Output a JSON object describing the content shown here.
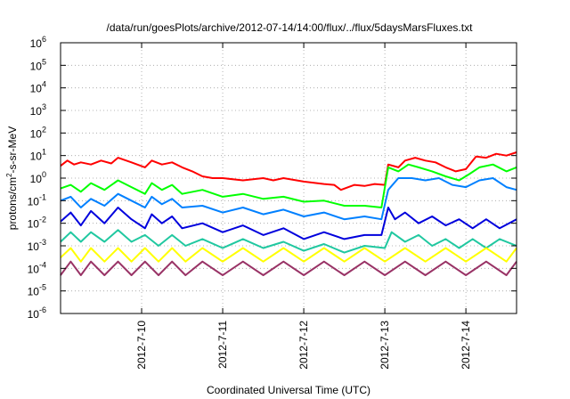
{
  "chart_data": {
    "type": "line",
    "title": "/data/run/goesPlots/archive/2012-07-14/14:00/flux/../flux/5daysMarsFluxes.txt",
    "xlabel": "Coordinated Universal Time (UTC)",
    "ylabel": {
      "prefix": "protons/cm",
      "sup": "2",
      "suffix": "-s-sr-MeV"
    },
    "yscale": "log",
    "ylim": [
      1e-06,
      1000000.0
    ],
    "xlim": [
      "2012-07-09T00:00",
      "2012-07-14T15:00"
    ],
    "grid": true,
    "legend": "none",
    "x_ticks": [
      {
        "label": "2012-7-10",
        "t": "2012-07-10T00:00"
      },
      {
        "label": "2012-7-11",
        "t": "2012-07-11T00:00"
      },
      {
        "label": "2012-7-12",
        "t": "2012-07-12T00:00"
      },
      {
        "label": "2012-7-13",
        "t": "2012-07-13T00:00"
      },
      {
        "label": "2012-7-14",
        "t": "2012-07-14T00:00"
      }
    ],
    "y_ticks": [
      {
        "base": "10",
        "exp": "-6",
        "v": -6
      },
      {
        "base": "10",
        "exp": "-5",
        "v": -5
      },
      {
        "base": "10",
        "exp": "-4",
        "v": -4
      },
      {
        "base": "10",
        "exp": "-3",
        "v": -3
      },
      {
        "base": "10",
        "exp": "-2",
        "v": -2
      },
      {
        "base": "10",
        "exp": "-1",
        "v": -1
      },
      {
        "base": "10",
        "exp": "0",
        "v": 0
      },
      {
        "base": "10",
        "exp": "1",
        "v": 1
      },
      {
        "base": "10",
        "exp": "2",
        "v": 2
      },
      {
        "base": "10",
        "exp": "3",
        "v": 3
      },
      {
        "base": "10",
        "exp": "4",
        "v": 4
      },
      {
        "base": "10",
        "exp": "5",
        "v": 5
      },
      {
        "base": "10",
        "exp": "6",
        "v": 6
      }
    ],
    "series": [
      {
        "color": "#ff0000",
        "values": [
          [
            "2012-07-09T00:00",
            3.5
          ],
          [
            "2012-07-09T02:00",
            6
          ],
          [
            "2012-07-09T04:00",
            4
          ],
          [
            "2012-07-09T06:00",
            5
          ],
          [
            "2012-07-09T09:00",
            4
          ],
          [
            "2012-07-09T12:00",
            6
          ],
          [
            "2012-07-09T15:00",
            4.5
          ],
          [
            "2012-07-09T17:00",
            8
          ],
          [
            "2012-07-09T21:00",
            5
          ],
          [
            "2012-07-10T01:00",
            3
          ],
          [
            "2012-07-10T03:00",
            6
          ],
          [
            "2012-07-10T06:00",
            4
          ],
          [
            "2012-07-10T09:00",
            5
          ],
          [
            "2012-07-10T12:00",
            3
          ],
          [
            "2012-07-10T15:00",
            2
          ],
          [
            "2012-07-10T18:00",
            1.2
          ],
          [
            "2012-07-10T21:00",
            1.0
          ],
          [
            "2012-07-11T00:00",
            1.0
          ],
          [
            "2012-07-11T06:00",
            0.8
          ],
          [
            "2012-07-11T12:00",
            1.0
          ],
          [
            "2012-07-11T15:00",
            0.8
          ],
          [
            "2012-07-11T18:00",
            1.0
          ],
          [
            "2012-07-12T00:00",
            0.7
          ],
          [
            "2012-07-12T06:00",
            0.55
          ],
          [
            "2012-07-12T09:00",
            0.5
          ],
          [
            "2012-07-12T11:00",
            0.3
          ],
          [
            "2012-07-12T15:00",
            0.5
          ],
          [
            "2012-07-12T18:00",
            0.45
          ],
          [
            "2012-07-12T21:00",
            0.55
          ],
          [
            "2012-07-13T00:00",
            0.5
          ],
          [
            "2012-07-13T01:00",
            4
          ],
          [
            "2012-07-13T04:00",
            3
          ],
          [
            "2012-07-13T06:00",
            6
          ],
          [
            "2012-07-13T09:00",
            8
          ],
          [
            "2012-07-13T12:00",
            6
          ],
          [
            "2012-07-13T15:00",
            5
          ],
          [
            "2012-07-13T18:00",
            3
          ],
          [
            "2012-07-13T21:00",
            2
          ],
          [
            "2012-07-14T00:00",
            2.5
          ],
          [
            "2012-07-14T03:00",
            9
          ],
          [
            "2012-07-14T06:00",
            8
          ],
          [
            "2012-07-14T09:00",
            12
          ],
          [
            "2012-07-14T12:00",
            10
          ],
          [
            "2012-07-14T15:00",
            14
          ]
        ]
      },
      {
        "color": "#00ff00",
        "values": [
          [
            "2012-07-09T00:00",
            0.35
          ],
          [
            "2012-07-09T03:00",
            0.5
          ],
          [
            "2012-07-09T06:00",
            0.25
          ],
          [
            "2012-07-09T09:00",
            0.6
          ],
          [
            "2012-07-09T13:00",
            0.3
          ],
          [
            "2012-07-09T17:00",
            0.8
          ],
          [
            "2012-07-09T21:00",
            0.4
          ],
          [
            "2012-07-10T01:00",
            0.2
          ],
          [
            "2012-07-10T03:00",
            0.6
          ],
          [
            "2012-07-10T06:00",
            0.3
          ],
          [
            "2012-07-10T09:00",
            0.5
          ],
          [
            "2012-07-10T12:00",
            0.2
          ],
          [
            "2012-07-10T18:00",
            0.3
          ],
          [
            "2012-07-11T00:00",
            0.15
          ],
          [
            "2012-07-11T06:00",
            0.2
          ],
          [
            "2012-07-11T12:00",
            0.12
          ],
          [
            "2012-07-11T18:00",
            0.15
          ],
          [
            "2012-07-12T00:00",
            0.09
          ],
          [
            "2012-07-12T06:00",
            0.1
          ],
          [
            "2012-07-12T12:00",
            0.06
          ],
          [
            "2012-07-12T18:00",
            0.06
          ],
          [
            "2012-07-12T23:00",
            0.05
          ],
          [
            "2012-07-13T01:00",
            3
          ],
          [
            "2012-07-13T04:00",
            2
          ],
          [
            "2012-07-13T07:00",
            4
          ],
          [
            "2012-07-13T10:00",
            3
          ],
          [
            "2012-07-13T14:00",
            2
          ],
          [
            "2012-07-13T18:00",
            1.2
          ],
          [
            "2012-07-13T22:00",
            0.8
          ],
          [
            "2012-07-14T01:00",
            1.5
          ],
          [
            "2012-07-14T04:00",
            3
          ],
          [
            "2012-07-14T08:00",
            4
          ],
          [
            "2012-07-14T12:00",
            2
          ],
          [
            "2012-07-14T15:00",
            3
          ]
        ]
      },
      {
        "color": "#0080ff",
        "values": [
          [
            "2012-07-09T00:00",
            0.1
          ],
          [
            "2012-07-09T03:00",
            0.15
          ],
          [
            "2012-07-09T06:00",
            0.05
          ],
          [
            "2012-07-09T09:00",
            0.12
          ],
          [
            "2012-07-09T13:00",
            0.06
          ],
          [
            "2012-07-09T17:00",
            0.2
          ],
          [
            "2012-07-09T21:00",
            0.1
          ],
          [
            "2012-07-10T01:00",
            0.05
          ],
          [
            "2012-07-10T03:00",
            0.15
          ],
          [
            "2012-07-10T06:00",
            0.07
          ],
          [
            "2012-07-10T09:00",
            0.12
          ],
          [
            "2012-07-10T12:00",
            0.05
          ],
          [
            "2012-07-10T18:00",
            0.06
          ],
          [
            "2012-07-11T00:00",
            0.03
          ],
          [
            "2012-07-11T06:00",
            0.05
          ],
          [
            "2012-07-11T12:00",
            0.025
          ],
          [
            "2012-07-11T18:00",
            0.04
          ],
          [
            "2012-07-12T00:00",
            0.02
          ],
          [
            "2012-07-12T06:00",
            0.03
          ],
          [
            "2012-07-12T12:00",
            0.015
          ],
          [
            "2012-07-12T18:00",
            0.02
          ],
          [
            "2012-07-12T23:00",
            0.015
          ],
          [
            "2012-07-13T01:00",
            0.3
          ],
          [
            "2012-07-13T04:00",
            1.0
          ],
          [
            "2012-07-13T08:00",
            1.0
          ],
          [
            "2012-07-13T12:00",
            0.8
          ],
          [
            "2012-07-13T16:00",
            1.0
          ],
          [
            "2012-07-13T20:00",
            0.5
          ],
          [
            "2012-07-14T00:00",
            0.4
          ],
          [
            "2012-07-14T04:00",
            0.8
          ],
          [
            "2012-07-14T08:00",
            1.0
          ],
          [
            "2012-07-14T12:00",
            0.4
          ],
          [
            "2012-07-14T15:00",
            0.3
          ]
        ]
      },
      {
        "color": "#0000dd",
        "values": [
          [
            "2012-07-09T00:00",
            0.012
          ],
          [
            "2012-07-09T03:00",
            0.03
          ],
          [
            "2012-07-09T06:00",
            0.008
          ],
          [
            "2012-07-09T09:00",
            0.035
          ],
          [
            "2012-07-09T13:00",
            0.01
          ],
          [
            "2012-07-09T17:00",
            0.05
          ],
          [
            "2012-07-09T21:00",
            0.015
          ],
          [
            "2012-07-10T01:00",
            0.006
          ],
          [
            "2012-07-10T03:00",
            0.025
          ],
          [
            "2012-07-10T06:00",
            0.01
          ],
          [
            "2012-07-10T09:00",
            0.02
          ],
          [
            "2012-07-10T12:00",
            0.006
          ],
          [
            "2012-07-10T18:00",
            0.01
          ],
          [
            "2012-07-11T00:00",
            0.004
          ],
          [
            "2012-07-11T06:00",
            0.008
          ],
          [
            "2012-07-11T12:00",
            0.003
          ],
          [
            "2012-07-11T18:00",
            0.006
          ],
          [
            "2012-07-12T00:00",
            0.002
          ],
          [
            "2012-07-12T06:00",
            0.004
          ],
          [
            "2012-07-12T12:00",
            0.002
          ],
          [
            "2012-07-12T18:00",
            0.003
          ],
          [
            "2012-07-12T23:00",
            0.003
          ],
          [
            "2012-07-13T01:00",
            0.05
          ],
          [
            "2012-07-13T03:00",
            0.015
          ],
          [
            "2012-07-13T06:00",
            0.03
          ],
          [
            "2012-07-13T10:00",
            0.01
          ],
          [
            "2012-07-13T14:00",
            0.02
          ],
          [
            "2012-07-13T18:00",
            0.008
          ],
          [
            "2012-07-13T22:00",
            0.015
          ],
          [
            "2012-07-14T02:00",
            0.006
          ],
          [
            "2012-07-14T06:00",
            0.015
          ],
          [
            "2012-07-14T10:00",
            0.006
          ],
          [
            "2012-07-14T15:00",
            0.015
          ]
        ]
      },
      {
        "color": "#20c8a0",
        "values": [
          [
            "2012-07-09T00:00",
            0.0015
          ],
          [
            "2012-07-09T03:00",
            0.004
          ],
          [
            "2012-07-09T06:00",
            0.0015
          ],
          [
            "2012-07-09T09:00",
            0.004
          ],
          [
            "2012-07-09T13:00",
            0.0015
          ],
          [
            "2012-07-09T17:00",
            0.005
          ],
          [
            "2012-07-09T21:00",
            0.0015
          ],
          [
            "2012-07-10T01:00",
            0.003
          ],
          [
            "2012-07-10T05:00",
            0.001
          ],
          [
            "2012-07-10T09:00",
            0.003
          ],
          [
            "2012-07-10T13:00",
            0.001
          ],
          [
            "2012-07-10T18:00",
            0.002
          ],
          [
            "2012-07-11T00:00",
            0.0008
          ],
          [
            "2012-07-11T06:00",
            0.002
          ],
          [
            "2012-07-11T12:00",
            0.0008
          ],
          [
            "2012-07-11T18:00",
            0.0015
          ],
          [
            "2012-07-12T00:00",
            0.0006
          ],
          [
            "2012-07-12T06:00",
            0.0012
          ],
          [
            "2012-07-12T12:00",
            0.0005
          ],
          [
            "2012-07-12T18:00",
            0.001
          ],
          [
            "2012-07-13T00:00",
            0.0008
          ],
          [
            "2012-07-13T02:00",
            0.004
          ],
          [
            "2012-07-13T06:00",
            0.0015
          ],
          [
            "2012-07-13T10:00",
            0.003
          ],
          [
            "2012-07-13T14:00",
            0.001
          ],
          [
            "2012-07-13T18:00",
            0.002
          ],
          [
            "2012-07-13T22:00",
            0.0008
          ],
          [
            "2012-07-14T02:00",
            0.002
          ],
          [
            "2012-07-14T06:00",
            0.0008
          ],
          [
            "2012-07-14T10:00",
            0.002
          ],
          [
            "2012-07-14T15:00",
            0.001
          ]
        ]
      },
      {
        "color": "#ffff00",
        "values": [
          [
            "2012-07-09T00:00",
            0.0003
          ],
          [
            "2012-07-09T03:00",
            0.0008
          ],
          [
            "2012-07-09T06:00",
            0.0002
          ],
          [
            "2012-07-09T09:00",
            0.0008
          ],
          [
            "2012-07-09T13:00",
            0.0002
          ],
          [
            "2012-07-09T17:00",
            0.0008
          ],
          [
            "2012-07-09T21:00",
            0.0002
          ],
          [
            "2012-07-10T01:00",
            0.0008
          ],
          [
            "2012-07-10T05:00",
            0.0002
          ],
          [
            "2012-07-10T09:00",
            0.0008
          ],
          [
            "2012-07-10T13:00",
            0.0002
          ],
          [
            "2012-07-10T18:00",
            0.0008
          ],
          [
            "2012-07-11T00:00",
            0.0002
          ],
          [
            "2012-07-11T06:00",
            0.0008
          ],
          [
            "2012-07-11T12:00",
            0.0002
          ],
          [
            "2012-07-11T18:00",
            0.0008
          ],
          [
            "2012-07-12T00:00",
            0.0002
          ],
          [
            "2012-07-12T06:00",
            0.0008
          ],
          [
            "2012-07-12T12:00",
            0.0002
          ],
          [
            "2012-07-12T18:00",
            0.0008
          ],
          [
            "2012-07-13T00:00",
            0.0002
          ],
          [
            "2012-07-13T06:00",
            0.0008
          ],
          [
            "2012-07-13T12:00",
            0.0002
          ],
          [
            "2012-07-13T18:00",
            0.0008
          ],
          [
            "2012-07-14T00:00",
            0.0002
          ],
          [
            "2012-07-14T06:00",
            0.0008
          ],
          [
            "2012-07-14T12:00",
            0.0002
          ],
          [
            "2012-07-14T15:00",
            0.0008
          ]
        ]
      },
      {
        "color": "#993366",
        "values": [
          [
            "2012-07-09T00:00",
            5e-05
          ],
          [
            "2012-07-09T03:00",
            0.0002
          ],
          [
            "2012-07-09T06:00",
            5e-05
          ],
          [
            "2012-07-09T09:00",
            0.0002
          ],
          [
            "2012-07-09T13:00",
            5e-05
          ],
          [
            "2012-07-09T17:00",
            0.0002
          ],
          [
            "2012-07-09T21:00",
            5e-05
          ],
          [
            "2012-07-10T01:00",
            0.0002
          ],
          [
            "2012-07-10T05:00",
            5e-05
          ],
          [
            "2012-07-10T09:00",
            0.0002
          ],
          [
            "2012-07-10T13:00",
            5e-05
          ],
          [
            "2012-07-10T18:00",
            0.0002
          ],
          [
            "2012-07-11T00:00",
            5e-05
          ],
          [
            "2012-07-11T06:00",
            0.0002
          ],
          [
            "2012-07-11T12:00",
            5e-05
          ],
          [
            "2012-07-11T18:00",
            0.0002
          ],
          [
            "2012-07-12T00:00",
            5e-05
          ],
          [
            "2012-07-12T06:00",
            0.0002
          ],
          [
            "2012-07-12T12:00",
            5e-05
          ],
          [
            "2012-07-12T18:00",
            0.0002
          ],
          [
            "2012-07-13T00:00",
            5e-05
          ],
          [
            "2012-07-13T06:00",
            0.0002
          ],
          [
            "2012-07-13T12:00",
            5e-05
          ],
          [
            "2012-07-13T18:00",
            0.0002
          ],
          [
            "2012-07-14T00:00",
            5e-05
          ],
          [
            "2012-07-14T06:00",
            0.0002
          ],
          [
            "2012-07-14T12:00",
            5e-05
          ],
          [
            "2012-07-14T15:00",
            0.0002
          ]
        ]
      }
    ]
  }
}
